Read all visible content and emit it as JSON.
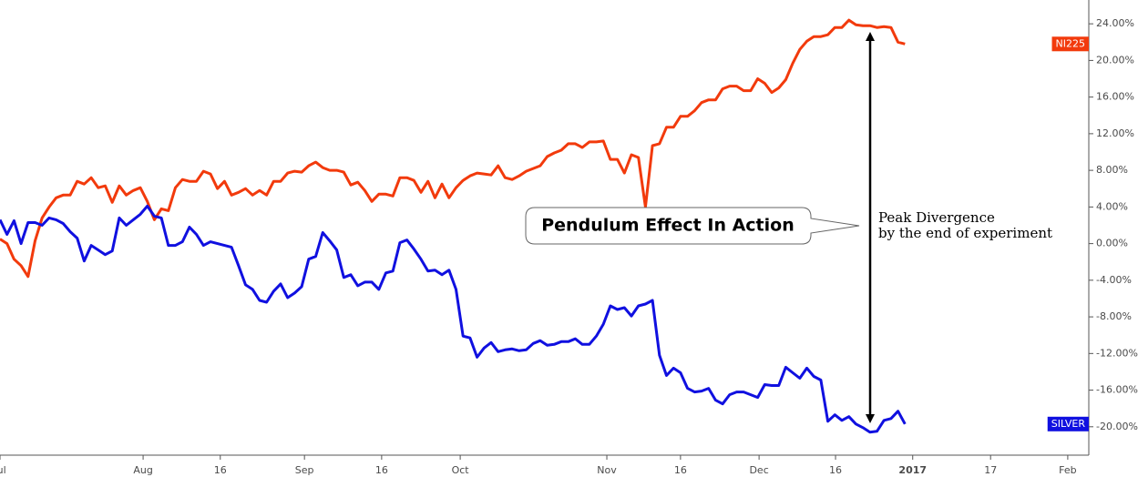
{
  "chart_data": {
    "type": "line",
    "xlim": [
      0,
      155.2
    ],
    "xticks": [
      {
        "value": 0,
        "label": "Jul"
      },
      {
        "value": 20.4,
        "label": "Aug"
      },
      {
        "value": 31.4,
        "label": "16"
      },
      {
        "value": 43.4,
        "label": "Sep"
      },
      {
        "value": 54.4,
        "label": "16"
      },
      {
        "value": 65.6,
        "label": "Oct"
      },
      {
        "value": 86.5,
        "label": "Nov"
      },
      {
        "value": 97,
        "label": "16"
      },
      {
        "value": 108.2,
        "label": "Dec"
      },
      {
        "value": 119.1,
        "label": "16"
      },
      {
        "value": 130.1,
        "label": "2017"
      },
      {
        "value": 141.2,
        "label": "17"
      },
      {
        "value": 152.2,
        "label": "Feb"
      }
    ],
    "ylim": [
      -23.1,
      26.6
    ],
    "yticks": [
      {
        "value": 24,
        "label": "24.00%"
      },
      {
        "value": 20,
        "label": "20.00%"
      },
      {
        "value": 16,
        "label": "16.00%"
      },
      {
        "value": 12,
        "label": "12.00%"
      },
      {
        "value": 8,
        "label": "8.00%"
      },
      {
        "value": 4,
        "label": "4.00%"
      },
      {
        "value": 0,
        "label": "0.00%"
      },
      {
        "value": -4,
        "label": "-4.00%"
      },
      {
        "value": -8,
        "label": "-8.00%"
      },
      {
        "value": -12,
        "label": "-12.00%"
      },
      {
        "value": -16,
        "label": "-16.00%"
      },
      {
        "value": -20,
        "label": "-20.00%"
      }
    ],
    "annotations": [
      "Pendulum Effect In Action",
      "Peak Divergence",
      "by the end of experiment"
    ],
    "series": [
      {
        "name": "NI225",
        "color": "#f23a0c",
        "values": [
          0.5,
          0,
          -1.7,
          -2.4,
          -3.6,
          0.3,
          2.8,
          4.0,
          5.0,
          5.3,
          5.3,
          6.8,
          6.5,
          7.2,
          6.1,
          6.3,
          4.5,
          6.3,
          5.3,
          5.8,
          6.1,
          4.6,
          2.6,
          3.8,
          3.6,
          6.1,
          7.0,
          6.8,
          6.8,
          7.9,
          7.6,
          6.0,
          6.8,
          5.3,
          5.6,
          6.0,
          5.3,
          5.8,
          5.3,
          6.8,
          6.8,
          7.7,
          7.9,
          7.8,
          8.5,
          8.9,
          8.3,
          8.0,
          8.0,
          7.8,
          6.4,
          6.7,
          5.8,
          4.6,
          5.4,
          5.4,
          5.2,
          7.2,
          7.2,
          6.9,
          5.6,
          6.8,
          5.0,
          6.5,
          5.0,
          6.1,
          6.9,
          7.4,
          7.7,
          7.6,
          7.5,
          8.5,
          7.2,
          7.0,
          7.4,
          7.9,
          8.2,
          8.5,
          9.5,
          9.9,
          10.2,
          10.9,
          10.9,
          10.5,
          11.1,
          11.1,
          11.2,
          9.2,
          9.2,
          7.7,
          9.7,
          9.4,
          4.0,
          10.7,
          10.9,
          12.7,
          12.7,
          13.9,
          13.9,
          14.5,
          15.4,
          15.7,
          15.7,
          16.9,
          17.2,
          17.2,
          16.7,
          16.7,
          18.0,
          17.5,
          16.5,
          17.0,
          17.9,
          19.7,
          21.2,
          22.1,
          22.6,
          22.6,
          22.8,
          23.6,
          23.6,
          24.4,
          23.9,
          23.8,
          23.8,
          23.6,
          23.7,
          23.6,
          22.0,
          21.8
        ]
      },
      {
        "name": "SILVER",
        "color": "#1010e0",
        "values": [
          2.6,
          1.0,
          2.5,
          0,
          2.3,
          2.3,
          2.0,
          2.8,
          2.6,
          2.2,
          1.3,
          0.6,
          -1.9,
          -0.2,
          -0.7,
          -1.2,
          -0.8,
          2.8,
          2.0,
          2.6,
          3.2,
          4.1,
          3.0,
          2.8,
          -0.2,
          -0.2,
          0.2,
          1.8,
          1.0,
          -0.2,
          0.2,
          0,
          -0.2,
          -0.4,
          -2.4,
          -4.5,
          -5.0,
          -6.2,
          -6.4,
          -5.2,
          -4.4,
          -5.9,
          -5.4,
          -4.7,
          -1.7,
          -1.4,
          1.2,
          0.3,
          -0.7,
          -3.7,
          -3.4,
          -4.6,
          -4.2,
          -4.2,
          -5.0,
          -3.2,
          -3.0,
          0.1,
          0.4,
          -0.6,
          -1.7,
          -3.0,
          -2.9,
          -3.4,
          -2.9,
          -5.0,
          -10.1,
          -10.3,
          -12.4,
          -11.4,
          -10.8,
          -11.8,
          -11.6,
          -11.5,
          -11.7,
          -11.6,
          -10.9,
          -10.6,
          -11.1,
          -11.0,
          -10.7,
          -10.7,
          -10.4,
          -11.0,
          -11.0,
          -10.1,
          -8.8,
          -6.8,
          -7.2,
          -7.0,
          -7.9,
          -6.8,
          -6.6,
          -6.2,
          -12.2,
          -14.4,
          -13.6,
          -14.1,
          -15.8,
          -16.2,
          -16.1,
          -15.8,
          -17.1,
          -17.5,
          -16.5,
          -16.2,
          -16.2,
          -16.5,
          -16.8,
          -15.4,
          -15.5,
          -15.5,
          -13.5,
          -14.1,
          -14.7,
          -13.6,
          -14.5,
          -14.9,
          -19.4,
          -18.7,
          -19.3,
          -18.9,
          -19.7,
          -20.1,
          -20.6,
          -20.5,
          -19.3,
          -19.1,
          -18.3,
          -19.7
        ]
      }
    ]
  }
}
